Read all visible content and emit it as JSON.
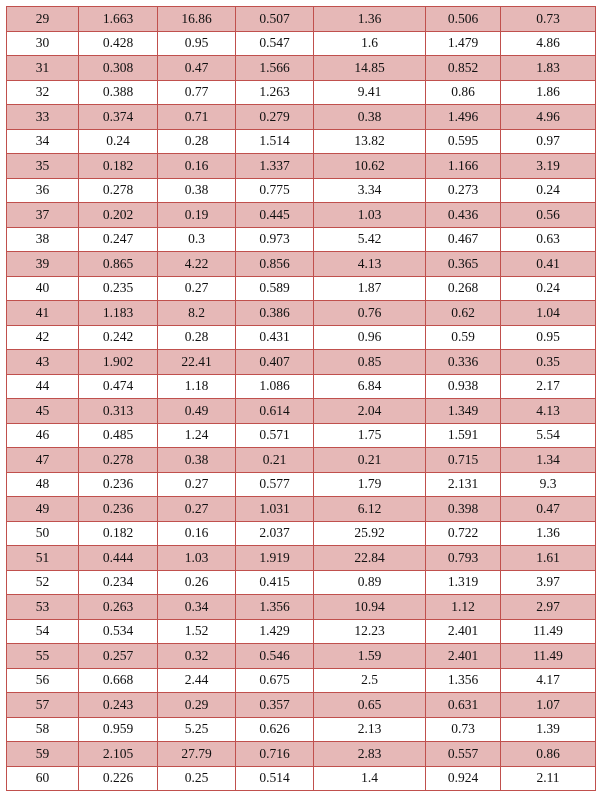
{
  "table": {
    "rows": [
      [
        29,
        1.663,
        16.86,
        0.507,
        1.36,
        0.506,
        0.73
      ],
      [
        30,
        0.428,
        0.95,
        0.547,
        1.6,
        1.479,
        4.86
      ],
      [
        31,
        0.308,
        0.47,
        1.566,
        14.85,
        0.852,
        1.83
      ],
      [
        32,
        0.388,
        0.77,
        1.263,
        9.41,
        0.86,
        1.86
      ],
      [
        33,
        0.374,
        0.71,
        0.279,
        0.38,
        1.496,
        4.96
      ],
      [
        34,
        0.24,
        0.28,
        1.514,
        13.82,
        0.595,
        0.97
      ],
      [
        35,
        0.182,
        0.16,
        1.337,
        10.62,
        1.166,
        3.19
      ],
      [
        36,
        0.278,
        0.38,
        0.775,
        3.34,
        0.273,
        0.24
      ],
      [
        37,
        0.202,
        0.19,
        0.445,
        1.03,
        0.436,
        0.56
      ],
      [
        38,
        0.247,
        0.3,
        0.973,
        5.42,
        0.467,
        0.63
      ],
      [
        39,
        0.865,
        4.22,
        0.856,
        4.13,
        0.365,
        0.41
      ],
      [
        40,
        0.235,
        0.27,
        0.589,
        1.87,
        0.268,
        0.24
      ],
      [
        41,
        1.183,
        8.2,
        0.386,
        0.76,
        0.62,
        1.04
      ],
      [
        42,
        0.242,
        0.28,
        0.431,
        0.96,
        0.59,
        0.95
      ],
      [
        43,
        1.902,
        22.41,
        0.407,
        0.85,
        0.336,
        0.35
      ],
      [
        44,
        0.474,
        1.18,
        1.086,
        6.84,
        0.938,
        2.17
      ],
      [
        45,
        0.313,
        0.49,
        0.614,
        2.04,
        1.349,
        4.13
      ],
      [
        46,
        0.485,
        1.24,
        0.571,
        1.75,
        1.591,
        5.54
      ],
      [
        47,
        0.278,
        0.38,
        0.21,
        0.21,
        0.715,
        1.34
      ],
      [
        48,
        0.236,
        0.27,
        0.577,
        1.79,
        2.131,
        9.3
      ],
      [
        49,
        0.236,
        0.27,
        1.031,
        6.12,
        0.398,
        0.47
      ],
      [
        50,
        0.182,
        0.16,
        2.037,
        25.92,
        0.722,
        1.36
      ],
      [
        51,
        0.444,
        1.03,
        1.919,
        22.84,
        0.793,
        1.61
      ],
      [
        52,
        0.234,
        0.26,
        0.415,
        0.89,
        1.319,
        3.97
      ],
      [
        53,
        0.263,
        0.34,
        1.356,
        10.94,
        1.12,
        2.97
      ],
      [
        54,
        0.534,
        1.52,
        1.429,
        12.23,
        2.401,
        11.49
      ],
      [
        55,
        0.257,
        0.32,
        0.546,
        1.59,
        2.401,
        11.49
      ],
      [
        56,
        0.668,
        2.44,
        0.675,
        2.5,
        1.356,
        4.17
      ],
      [
        57,
        0.243,
        0.29,
        0.357,
        0.65,
        0.631,
        1.07
      ],
      [
        58,
        0.959,
        5.25,
        0.626,
        2.13,
        0.73,
        1.39
      ],
      [
        59,
        2.105,
        27.79,
        0.716,
        2.83,
        0.557,
        0.86
      ],
      [
        60,
        0.226,
        0.25,
        0.514,
        1.4,
        0.924,
        2.11
      ]
    ]
  }
}
